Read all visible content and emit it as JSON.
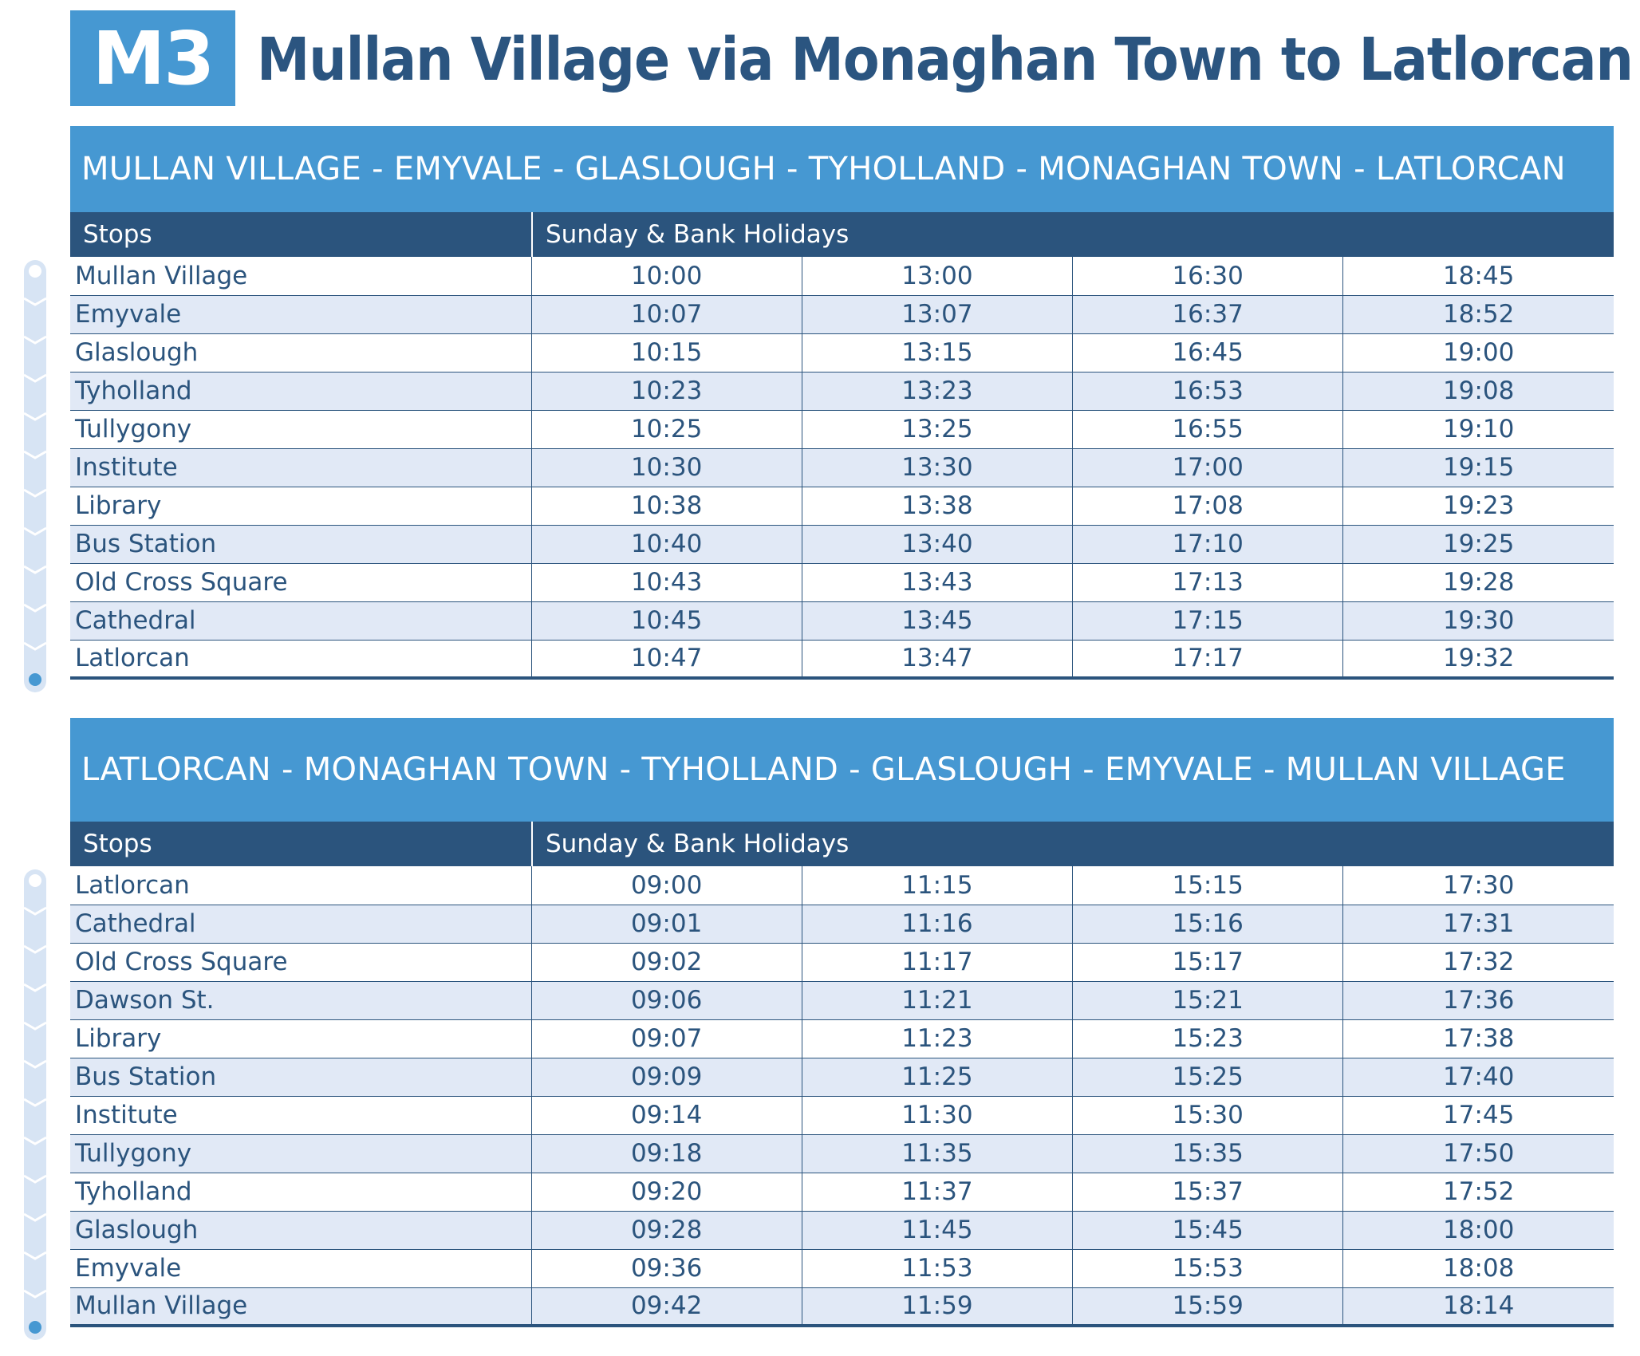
{
  "route": {
    "number": "M3",
    "title": "Mullan Village via Monaghan Town to Latlorcan"
  },
  "colors": {
    "accent": "#4698d2",
    "header_dark": "#2b547d",
    "stripe": "#e1e9f6",
    "title_text": "#2b5580"
  },
  "directions": [
    {
      "title": "MULLAN VILLAGE - EMYVALE - GLASLOUGH - TYHOLLAND - MONAGHAN TOWN - LATLORCAN",
      "stops_header": "Stops",
      "days_header": "Sunday & Bank Holidays",
      "rows": [
        {
          "stop": "Mullan Village",
          "times": [
            "10:00",
            "13:00",
            "16:30",
            "18:45"
          ]
        },
        {
          "stop": "Emyvale",
          "times": [
            "10:07",
            "13:07",
            "16:37",
            "18:52"
          ]
        },
        {
          "stop": "Glaslough",
          "times": [
            "10:15",
            "13:15",
            "16:45",
            "19:00"
          ]
        },
        {
          "stop": "Tyholland",
          "times": [
            "10:23",
            "13:23",
            "16:53",
            "19:08"
          ]
        },
        {
          "stop": "Tullygony",
          "times": [
            "10:25",
            "13:25",
            "16:55",
            "19:10"
          ]
        },
        {
          "stop": "Institute",
          "times": [
            "10:30",
            "13:30",
            "17:00",
            "19:15"
          ]
        },
        {
          "stop": "Library",
          "times": [
            "10:38",
            "13:38",
            "17:08",
            "19:23"
          ]
        },
        {
          "stop": "Bus Station",
          "times": [
            "10:40",
            "13:40",
            "17:10",
            "19:25"
          ]
        },
        {
          "stop": "Old Cross Square",
          "times": [
            "10:43",
            "13:43",
            "17:13",
            "19:28"
          ]
        },
        {
          "stop": "Cathedral",
          "times": [
            "10:45",
            "13:45",
            "17:15",
            "19:30"
          ]
        },
        {
          "stop": "Latlorcan",
          "times": [
            "10:47",
            "13:47",
            "17:17",
            "19:32"
          ]
        }
      ]
    },
    {
      "title": "LATLORCAN - MONAGHAN TOWN - TYHOLLAND - GLASLOUGH - EMYVALE - MULLAN VILLAGE",
      "stops_header": "Stops",
      "days_header": "Sunday & Bank Holidays",
      "rows": [
        {
          "stop": "Latlorcan",
          "times": [
            "09:00",
            "11:15",
            "15:15",
            "17:30"
          ]
        },
        {
          "stop": "Cathedral",
          "times": [
            "09:01",
            "11:16",
            "15:16",
            "17:31"
          ]
        },
        {
          "stop": "Old Cross Square",
          "times": [
            "09:02",
            "11:17",
            "15:17",
            "17:32"
          ]
        },
        {
          "stop": "Dawson St.",
          "times": [
            "09:06",
            "11:21",
            "15:21",
            "17:36"
          ]
        },
        {
          "stop": "Library",
          "times": [
            "09:07",
            "11:23",
            "15:23",
            "17:38"
          ]
        },
        {
          "stop": "Bus Station",
          "times": [
            "09:09",
            "11:25",
            "15:25",
            "17:40"
          ]
        },
        {
          "stop": "Institute",
          "times": [
            "09:14",
            "11:30",
            "15:30",
            "17:45"
          ]
        },
        {
          "stop": "Tullygony",
          "times": [
            "09:18",
            "11:35",
            "15:35",
            "17:50"
          ]
        },
        {
          "stop": "Tyholland",
          "times": [
            "09:20",
            "11:37",
            "15:37",
            "17:52"
          ]
        },
        {
          "stop": "Glaslough",
          "times": [
            "09:28",
            "11:45",
            "15:45",
            "18:00"
          ]
        },
        {
          "stop": "Emyvale",
          "times": [
            "09:36",
            "11:53",
            "15:53",
            "18:08"
          ]
        },
        {
          "stop": "Mullan Village",
          "times": [
            "09:42",
            "11:59",
            "15:59",
            "18:14"
          ]
        }
      ]
    }
  ]
}
